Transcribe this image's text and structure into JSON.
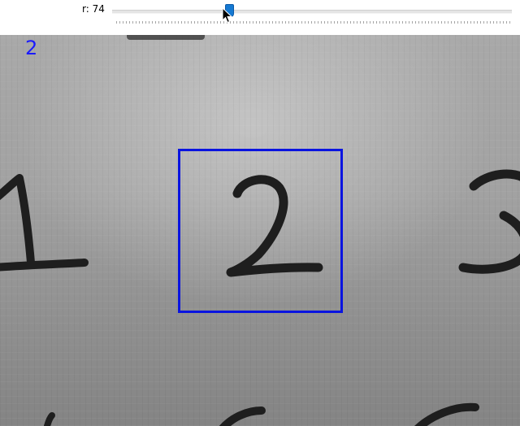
{
  "trackbar": {
    "name": "r",
    "value": 74,
    "label": "r: 74",
    "min": 0,
    "max": 255
  },
  "frame": {
    "prediction": "2",
    "box_color": "#0a14e0",
    "prediction_color": "#1a1aff"
  }
}
